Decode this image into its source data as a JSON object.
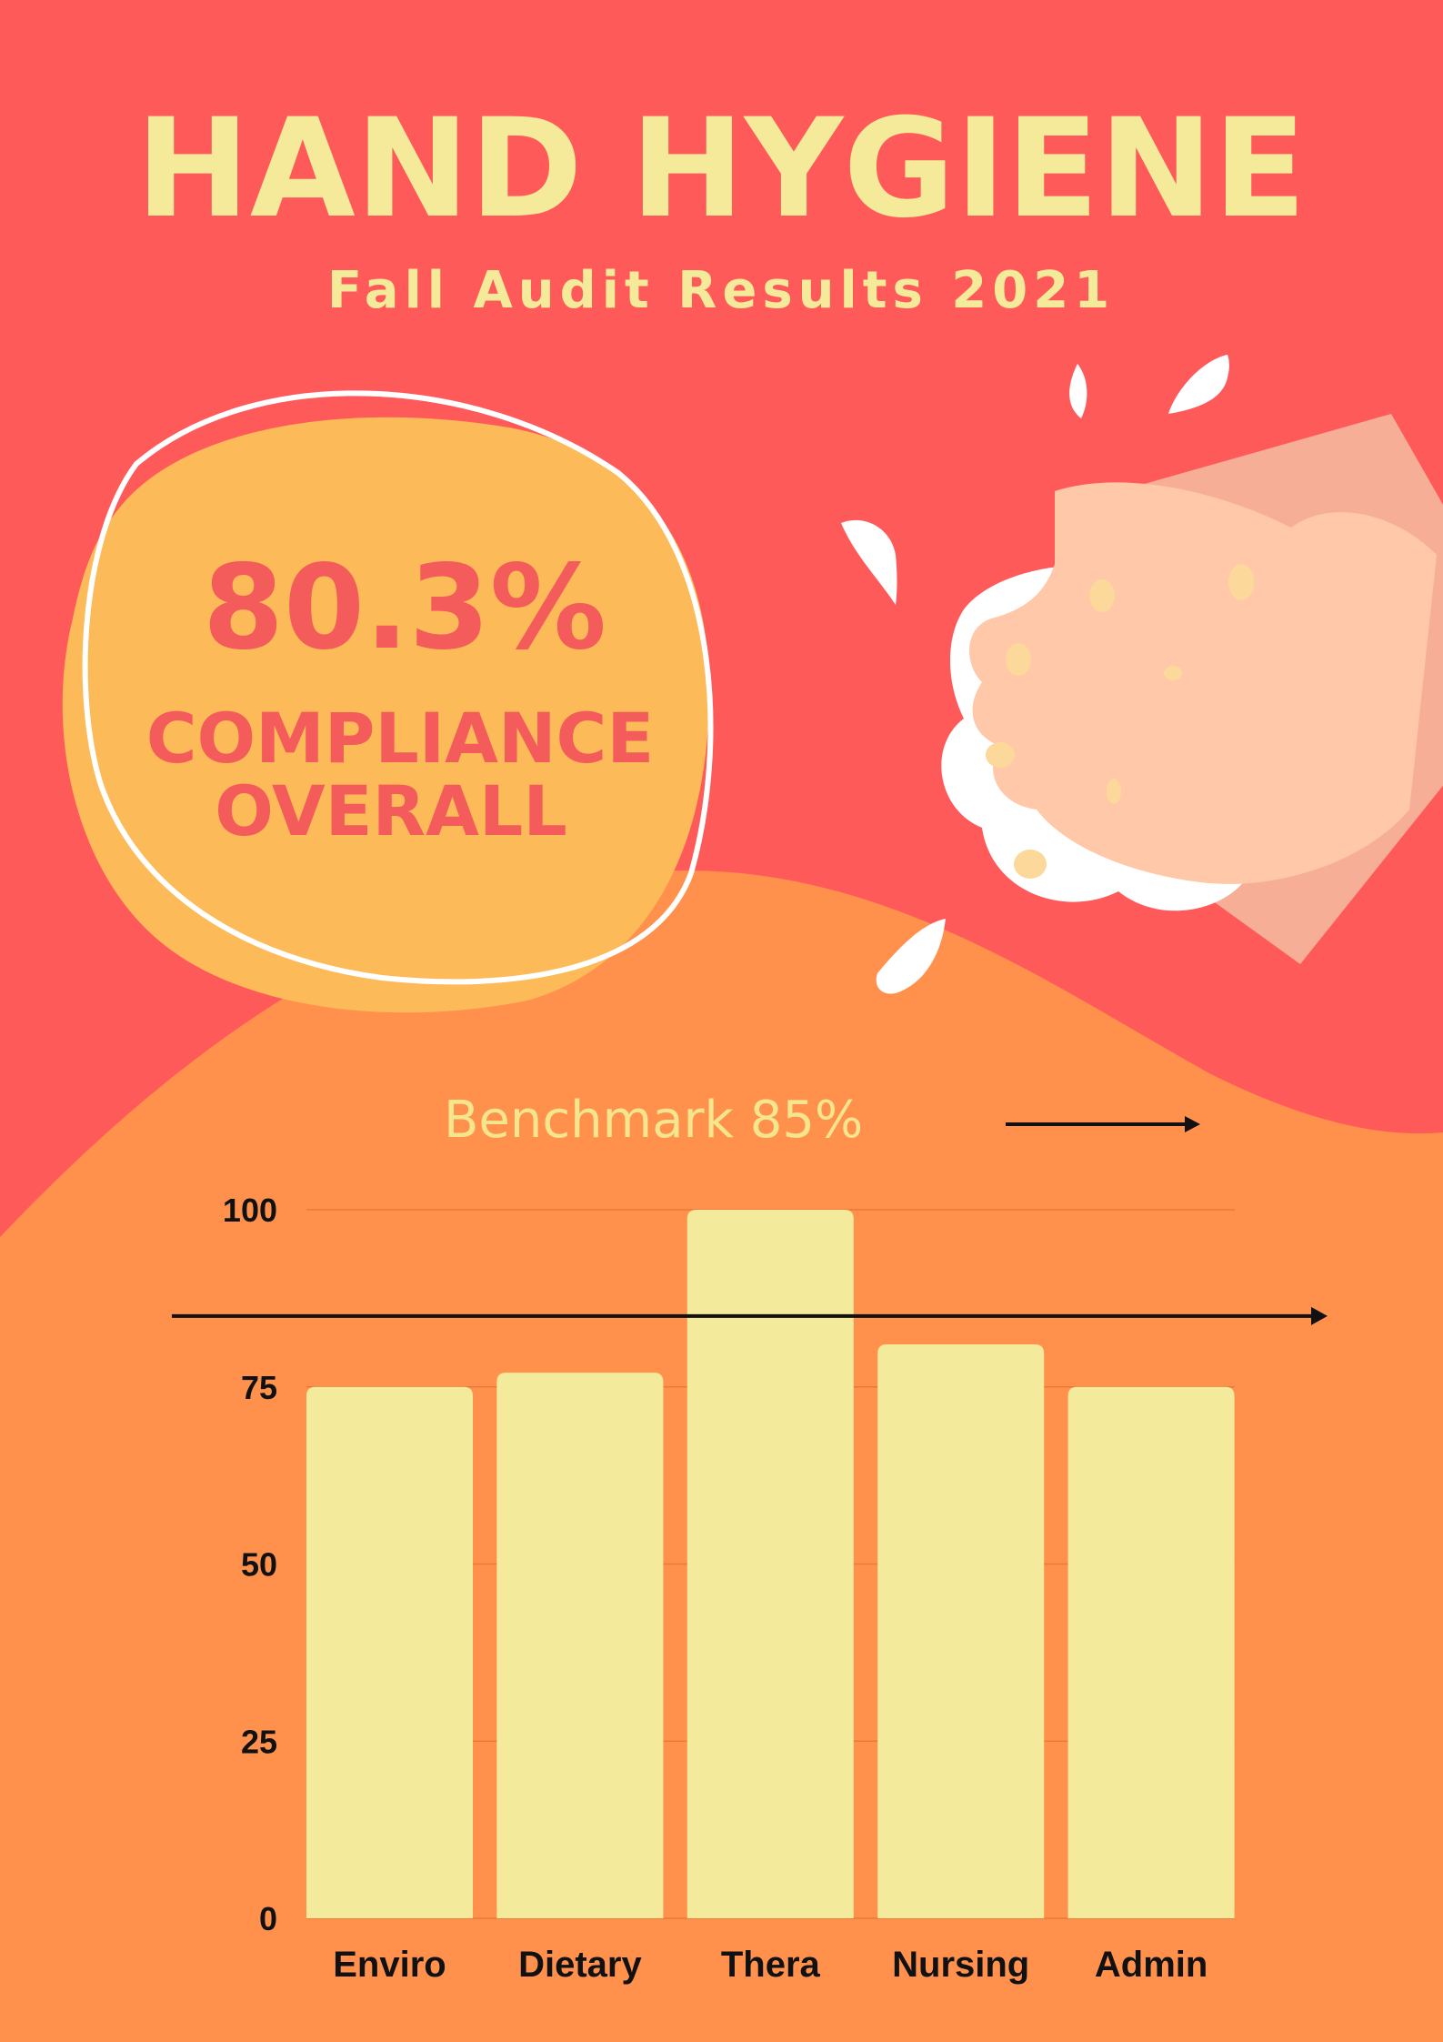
{
  "header": {
    "title": "HAND HYGIENE",
    "subtitle": "Fall Audit Results 2021"
  },
  "highlight": {
    "value": "80.3%",
    "line1": "COMPLIANCE",
    "line2": "OVERALL"
  },
  "illustration": {
    "icon": "hands-washing-icon"
  },
  "colors": {
    "background": "#FF5A5A",
    "wave": "#FF914D",
    "blob": "#FDBA58",
    "bar": "#F3EA9B",
    "accent_text": "#F45B5B"
  },
  "chart_data": {
    "type": "bar",
    "categories": [
      "Enviro",
      "Dietary",
      "Thera",
      "Nursing",
      "Admin"
    ],
    "values": [
      75,
      77,
      100,
      81,
      75
    ],
    "ylim": [
      0,
      100
    ],
    "yticks": [
      0,
      25,
      50,
      75,
      100
    ],
    "grid": true,
    "benchmark": {
      "label": "Benchmark 85%",
      "value": 85
    }
  }
}
